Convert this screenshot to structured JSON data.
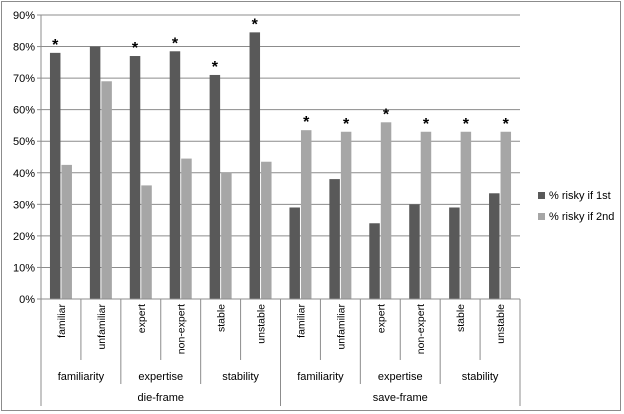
{
  "chart_data": {
    "type": "bar",
    "categories": [
      "familiar",
      "unfamiliar",
      "expert",
      "non-expert",
      "stable",
      "unstable",
      "familiar",
      "unfamiliar",
      "expert",
      "non-expert",
      "stable",
      "unstable"
    ],
    "groups": [
      {
        "label": "familiarity",
        "start": 0,
        "end": 1
      },
      {
        "label": "expertise",
        "start": 2,
        "end": 3
      },
      {
        "label": "stability",
        "start": 4,
        "end": 5
      },
      {
        "label": "familiarity",
        "start": 6,
        "end": 7
      },
      {
        "label": "expertise",
        "start": 8,
        "end": 9
      },
      {
        "label": "stability",
        "start": 10,
        "end": 11
      }
    ],
    "frames": [
      {
        "label": "die-frame",
        "start": 0,
        "end": 5
      },
      {
        "label": "save-frame",
        "start": 6,
        "end": 11
      }
    ],
    "series": [
      {
        "name": "% risky if 1st",
        "color": "#595959",
        "values": [
          78,
          80,
          77,
          78.5,
          71,
          84.5,
          29,
          38,
          24,
          30,
          29,
          33.5
        ]
      },
      {
        "name": "% risky if 2nd",
        "color": "#a6a6a6",
        "values": [
          42.5,
          69,
          36,
          44.5,
          40,
          43.5,
          53.5,
          53,
          56,
          53,
          53,
          53
        ]
      }
    ],
    "significance_marker": "*",
    "significant": [
      true,
      false,
      true,
      true,
      true,
      true,
      true,
      true,
      true,
      true,
      true,
      true
    ],
    "ylim": [
      0,
      90
    ],
    "yticks": [
      0,
      10,
      20,
      30,
      40,
      50,
      60,
      70,
      80,
      90
    ],
    "ytick_suffix": "%",
    "legend_position": "right",
    "grid": true
  }
}
